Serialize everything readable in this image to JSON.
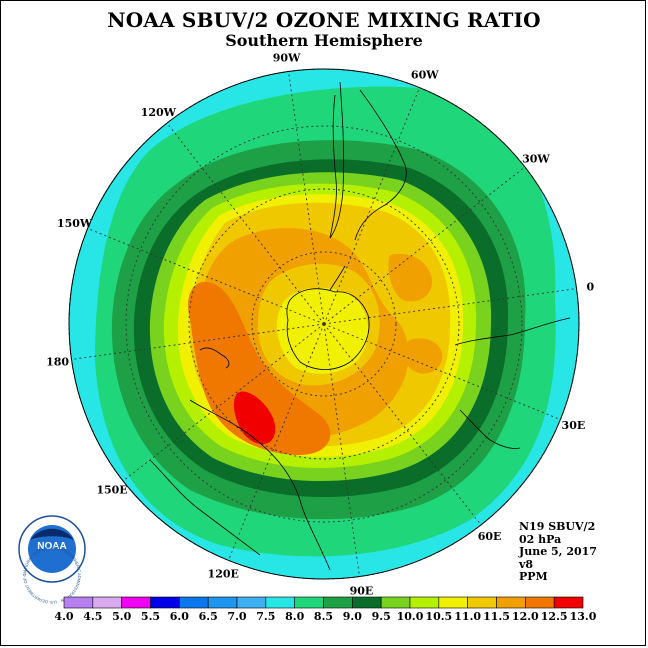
{
  "title": "NOAA SBUV/2 OZONE MIXING RATIO",
  "subtitle": "Southern Hemisphere",
  "logo_text": "NOAA",
  "logo_ring_text": "NATIONAL OCEANIC AND ATMOSPHERIC ADMINISTRATION · U.S. DEPARTMENT OF COMMERCE",
  "info": {
    "satellite": "N19 SBUV/2",
    "level": "02 hPa",
    "date": "June 5, 2017",
    "version": "v8",
    "units": "PPM"
  },
  "longitude_labels": [
    {
      "text": "90W",
      "lon": -90
    },
    {
      "text": "60W",
      "lon": -60
    },
    {
      "text": "30W",
      "lon": -30
    },
    {
      "text": "0",
      "lon": 0
    },
    {
      "text": "30E",
      "lon": 30
    },
    {
      "text": "60E",
      "lon": 60
    },
    {
      "text": "90E",
      "lon": 90
    },
    {
      "text": "120E",
      "lon": 120
    },
    {
      "text": "150E",
      "lon": 150
    },
    {
      "text": "180",
      "lon": 180
    },
    {
      "text": "150W",
      "lon": -150
    },
    {
      "text": "120W",
      "lon": -120
    }
  ],
  "colorbar": {
    "ticks": [
      "4.0",
      "4.5",
      "5.0",
      "5.5",
      "6.0",
      "6.5",
      "7.0",
      "7.5",
      "8.0",
      "8.5",
      "9.0",
      "9.5",
      "10.0",
      "10.5",
      "11.0",
      "11.5",
      "12.0",
      "12.5",
      "13.0"
    ],
    "colors": [
      "#b87ff0",
      "#d8aaee",
      "#f000f0",
      "#0000e8",
      "#0a78ec",
      "#1e96f0",
      "#3cb0f0",
      "#28e6e6",
      "#1fd77a",
      "#1ea046",
      "#0a6e2a",
      "#78d21e",
      "#b4f000",
      "#f0f000",
      "#f0c800",
      "#f0a000",
      "#f07800",
      "#f00000",
      "#8c5a3c"
    ]
  },
  "chart_data": {
    "type": "heatmap",
    "projection": "south-polar-stereographic",
    "variable": "ozone mixing ratio",
    "level_hpa": 2,
    "units": "PPM",
    "contour_levels": [
      4.0,
      4.5,
      5.0,
      5.5,
      6.0,
      6.5,
      7.0,
      7.5,
      8.0,
      8.5,
      9.0,
      9.5,
      10.0,
      10.5,
      11.0,
      11.5,
      12.0,
      12.5,
      13.0
    ],
    "approx_field": [
      {
        "region": "outer edge (~0 deg)",
        "range": [
          7.5,
          8.0
        ]
      },
      {
        "region": "mid latitudes",
        "range": [
          8.0,
          9.0
        ]
      },
      {
        "region": "subpolar belt",
        "range": [
          9.0,
          11.0
        ]
      },
      {
        "region": "maximum near 150E-180",
        "range": [
          12.0,
          12.5
        ]
      },
      {
        "region": "south pole",
        "range": [
          10.0,
          10.5
        ]
      }
    ]
  }
}
